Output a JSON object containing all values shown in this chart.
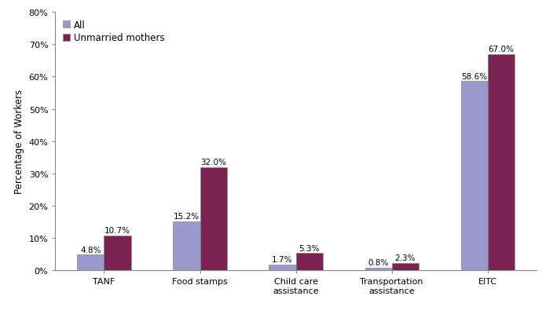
{
  "categories": [
    "TANF",
    "Food stamps",
    "Child care\nassistance",
    "Transportation\nassistance",
    "EITC"
  ],
  "all_values": [
    4.8,
    15.2,
    1.7,
    0.8,
    58.6
  ],
  "unmarried_values": [
    10.7,
    32.0,
    5.3,
    2.3,
    67.0
  ],
  "all_color": "#9999cc",
  "unmarried_color": "#7b2252",
  "ylabel": "Percentage of Workers",
  "ylim": [
    0,
    80
  ],
  "yticks": [
    0,
    10,
    20,
    30,
    40,
    50,
    60,
    70,
    80
  ],
  "ytick_labels": [
    "0%",
    "10%",
    "20%",
    "30%",
    "40%",
    "50%",
    "60%",
    "70%",
    "80%"
  ],
  "legend_labels": [
    "All",
    "Unmarried mothers"
  ],
  "bar_width": 0.28,
  "label_fontsize": 7.5,
  "tick_fontsize": 8,
  "legend_fontsize": 8.5,
  "ylabel_fontsize": 8.5,
  "background_color": "#ffffff"
}
